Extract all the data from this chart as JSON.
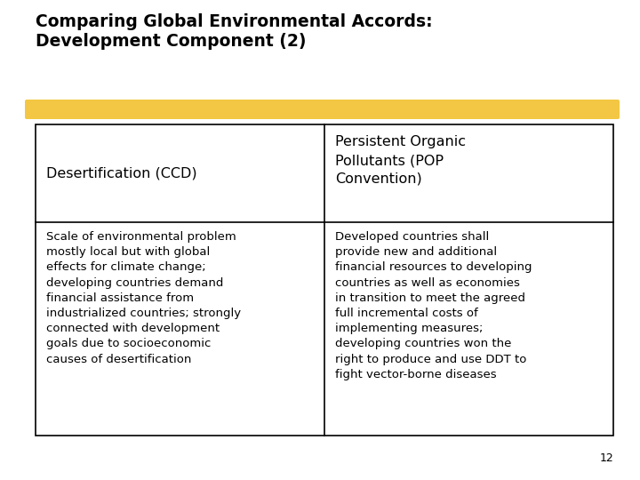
{
  "title_line1": "Comparing Global Environmental Accords:",
  "title_line2": "Development Component (2)",
  "col1_header": "Desertification (CCD)",
  "col2_header": "Persistent Organic\nPollutants (POP\nConvention)",
  "col1_body": "Scale of environmental problem\nmostly local but with global\neffects for climate change;\ndeveloping countries demand\nfinancial assistance from\nindustrialized countries; strongly\nconnected with development\ngoals due to socioeconomic\ncauses of desertification",
  "col2_body": "Developed countries shall\nprovide new and additional\nfinancial resources to developing\ncountries as well as economies\nin transition to meet the agreed\nfull incremental costs of\nimplementing measures;\ndeveloping countries won the\nright to produce and use DDT to\nfight vector-borne diseases",
  "page_number": "12",
  "background_color": "#ffffff",
  "title_color": "#000000",
  "table_border_color": "#000000",
  "highlight_color": "#F2C12E",
  "text_color": "#000000",
  "title_fontsize": 13.5,
  "header_fontsize": 11.5,
  "body_fontsize": 9.5,
  "page_fontsize": 9
}
